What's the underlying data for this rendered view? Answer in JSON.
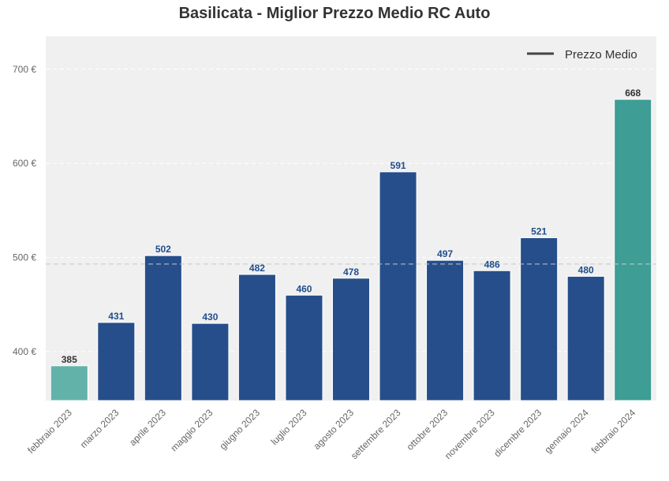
{
  "chart_data": {
    "type": "bar",
    "title": "Basilicata - Miglior Prezzo Medio RC Auto",
    "categories": [
      "febbraio 2023",
      "marzo 2023",
      "aprile 2023",
      "maggio 2023",
      "giugno 2023",
      "luglio 2023",
      "agosto 2023",
      "settembre 2023",
      "ottobre 2023",
      "novembre 2023",
      "dicembre 2023",
      "gennaio 2024",
      "febbraio 2024"
    ],
    "values": [
      385,
      431,
      502,
      430,
      482,
      460,
      478,
      591,
      497,
      486,
      521,
      480,
      668
    ],
    "value_labels": [
      "385",
      "431",
      "502",
      "430",
      "482",
      "460",
      "478",
      "591",
      "497",
      "486",
      "521",
      "480",
      "668"
    ],
    "ylim": [
      348,
      735
    ],
    "yticks": [
      400,
      500,
      600,
      700
    ],
    "ytick_labels": [
      "400 €",
      "500 €",
      "600 €",
      "700 €"
    ],
    "average_line": {
      "value": 493,
      "legend_label": "Prezzo Medio"
    },
    "legend_position": "top-right",
    "grid": true,
    "colors": {
      "first_bar": "#62b2aa",
      "middle_bars": "#264e8a",
      "last_bar": "#3e9d94",
      "middle_label": "#1f4e8c",
      "edge_label": "#333333",
      "background": "#f0f0f0",
      "average_line": "#c8c8c8",
      "legend_line": "#444444"
    }
  }
}
